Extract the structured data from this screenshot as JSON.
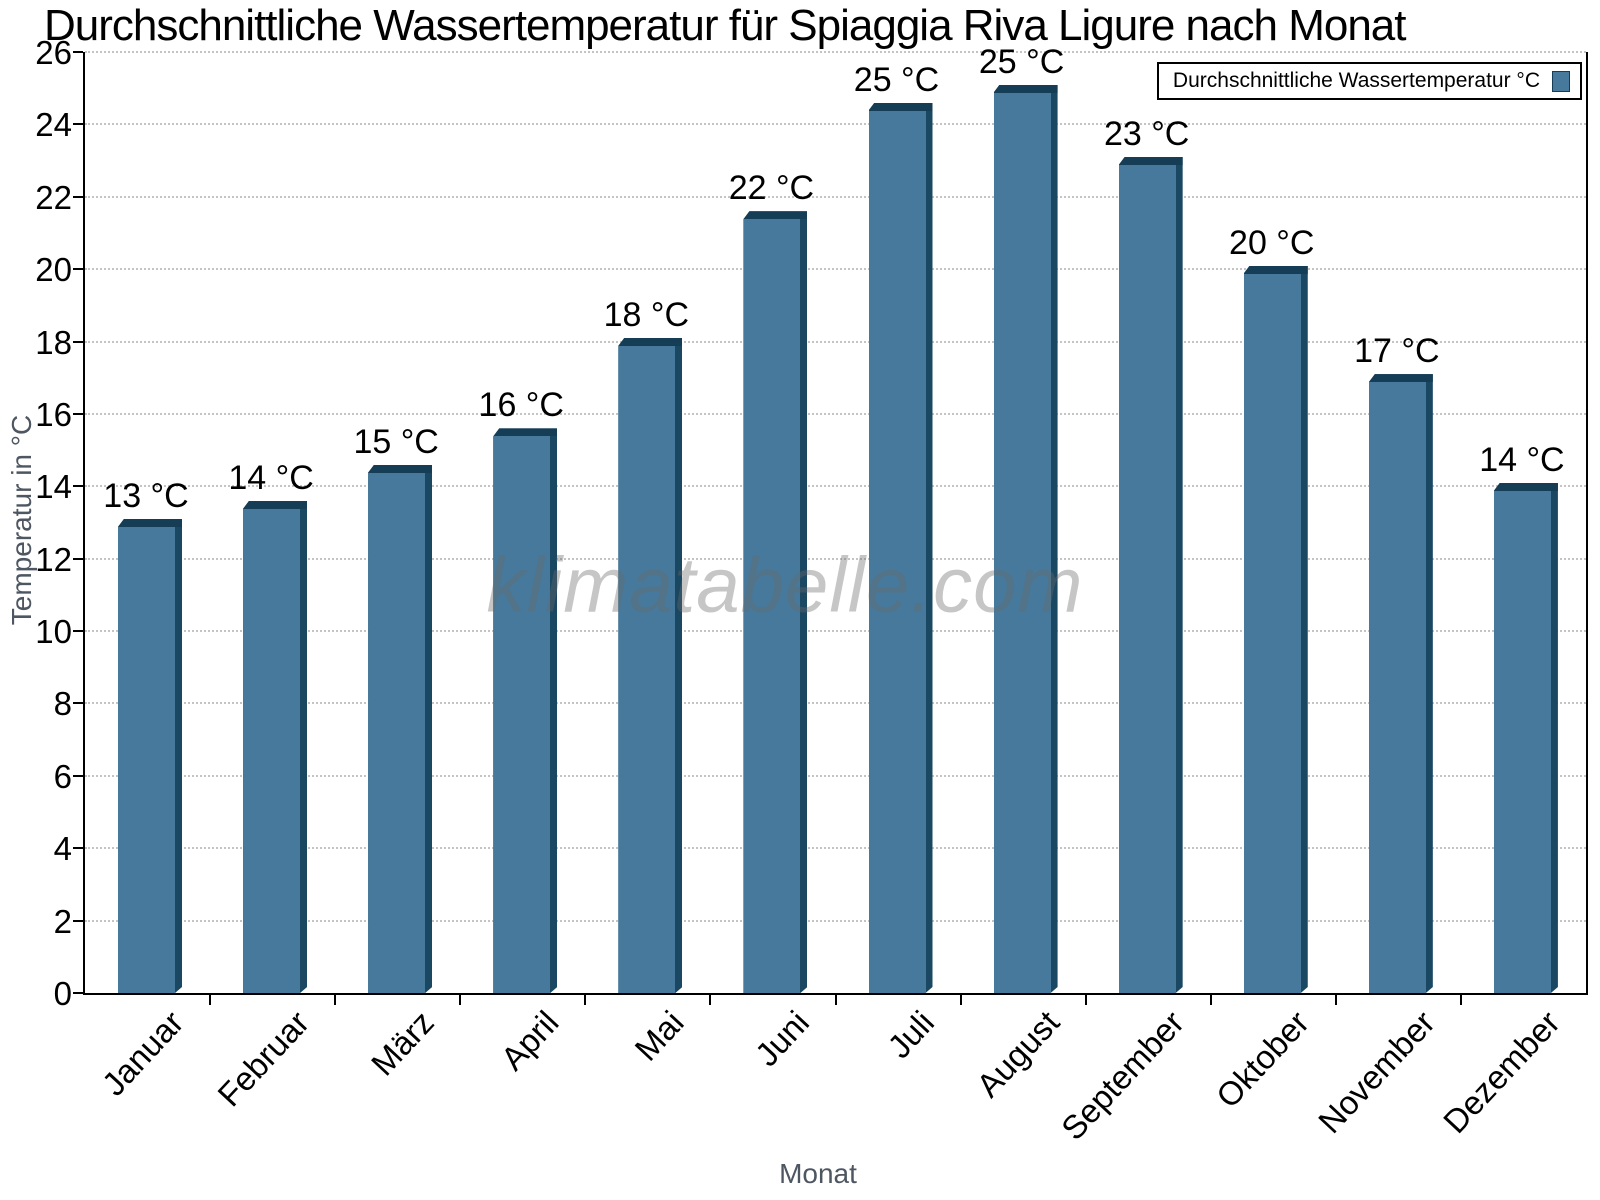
{
  "chart_data": {
    "type": "bar",
    "title": "Durchschnittliche Wassertemperatur für Spiaggia Riva Ligure nach Monat",
    "xlabel": "Monat",
    "ylabel": "Temperatur in °C",
    "watermark": "klimatabelle.com",
    "legend": {
      "label": "Durchschnittliche Wassertemperatur °C",
      "position": "top-right"
    },
    "categories": [
      "Januar",
      "Februar",
      "März",
      "April",
      "Mai",
      "Juni",
      "Juli",
      "August",
      "September",
      "Oktober",
      "November",
      "Dezember"
    ],
    "values": [
      13.1,
      13.6,
      14.6,
      15.6,
      18.1,
      21.6,
      24.6,
      25.1,
      23.1,
      20.1,
      17.1,
      14.1
    ],
    "bar_labels": [
      "13 °C",
      "14 °C",
      "15 °C",
      "16 °C",
      "18 °C",
      "22 °C",
      "25 °C",
      "25 °C",
      "23 °C",
      "20 °C",
      "17 °C",
      "14 °C"
    ],
    "ylim": [
      0,
      26
    ],
    "ytick_step": 2,
    "grid": "horizontal-dotted",
    "legend_position": "top-right",
    "colors": {
      "bar_fill": "#46799b",
      "bar_edge_top": "#153d56",
      "bar_edge_right": "#1a4762",
      "gridline": "#c4c4c4",
      "axis": "#000000",
      "axis_title": "#4d5661",
      "tick_label": "#000000",
      "watermark_text": "rgba(105,105,105,0.38)",
      "background": "#ffffff"
    }
  }
}
